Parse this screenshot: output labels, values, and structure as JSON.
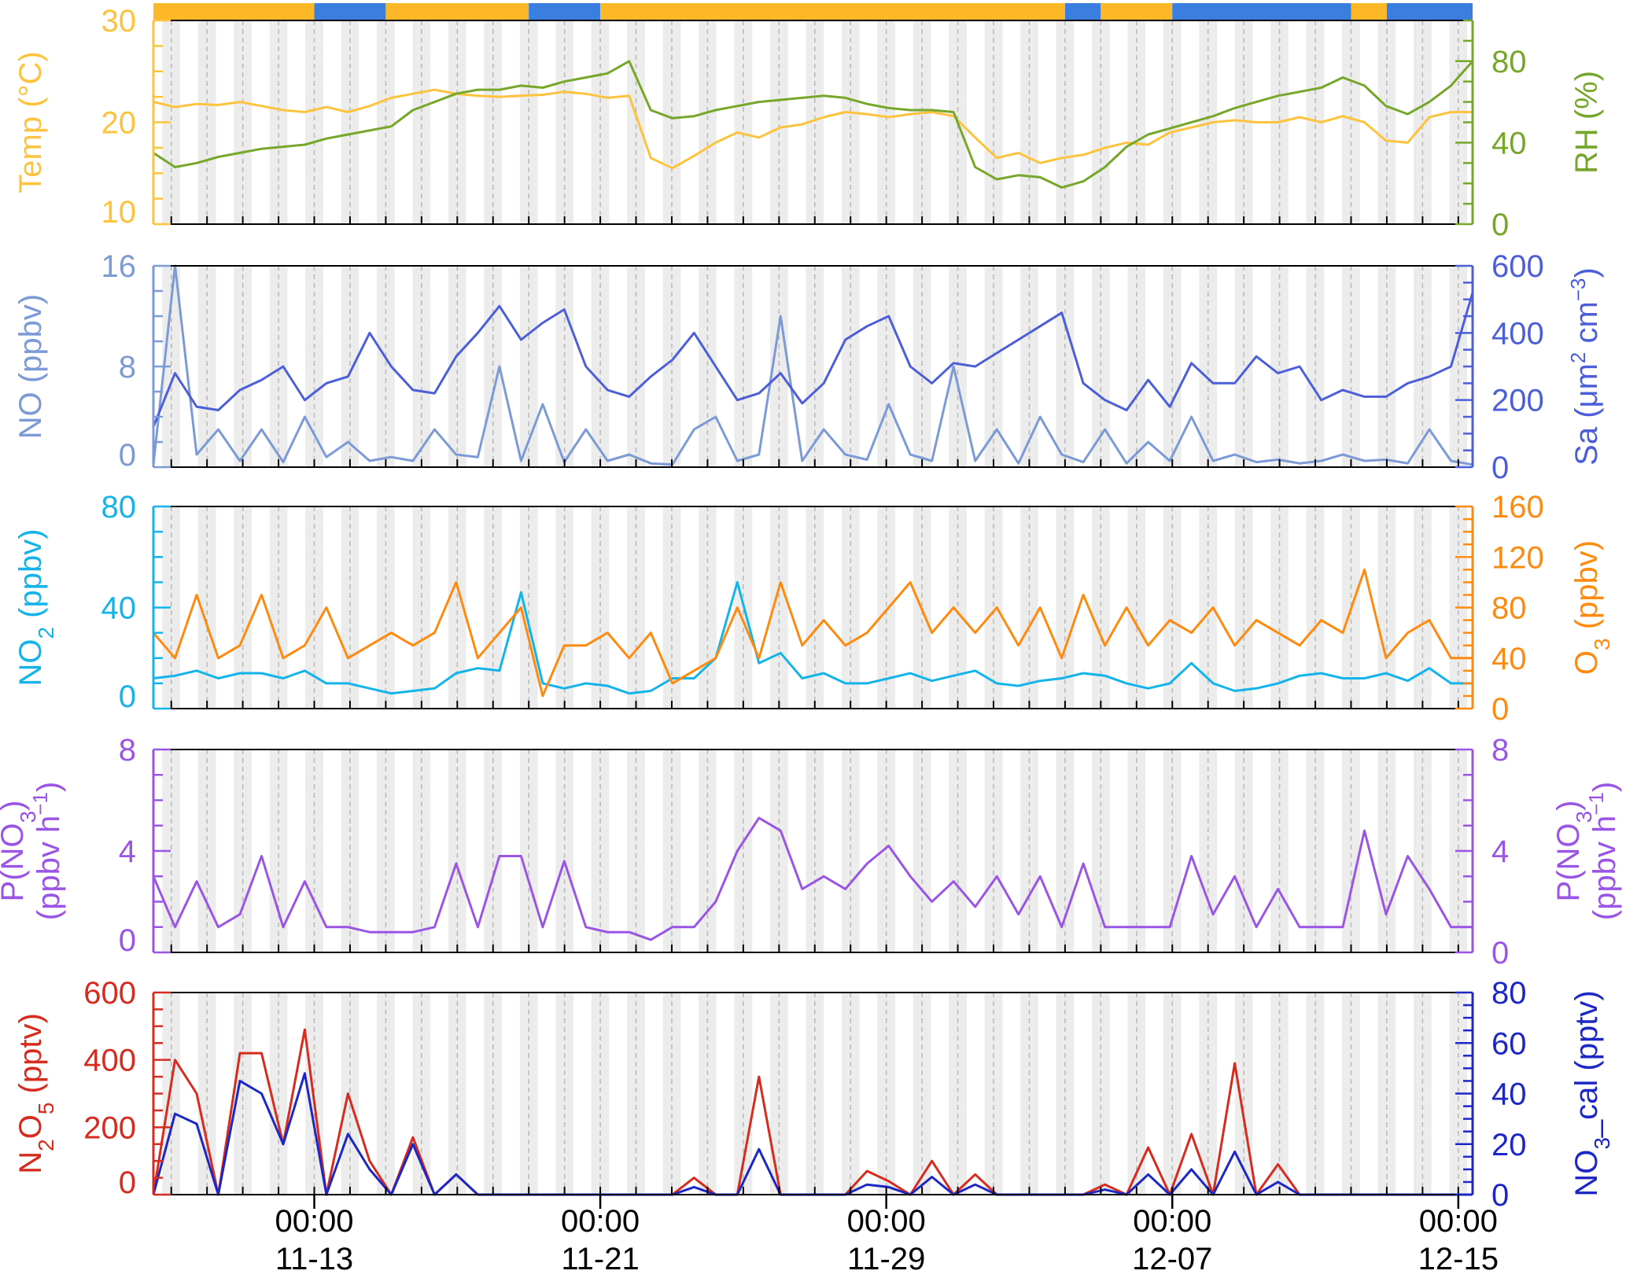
{
  "chart_data": {
    "type": "line",
    "x_ticks": [
      {
        "time": "00:00",
        "date": "11-13",
        "day": 8
      },
      {
        "time": "00:00",
        "date": "11-21",
        "day": 16
      },
      {
        "time": "00:00",
        "date": "11-29",
        "day": 24
      },
      {
        "time": "00:00",
        "date": "12-07",
        "day": 32
      },
      {
        "time": "00:00",
        "date": "12-15",
        "day": 40
      }
    ],
    "x_range_days": [
      3.5,
      40.4
    ],
    "day_offset_note": "",
    "status_bar": {
      "colors": [
        "#fdb827",
        "#3a7fe0"
      ],
      "segments": [
        {
          "start": 3.5,
          "end": 8.0,
          "state": 0
        },
        {
          "start": 8.0,
          "end": 10.0,
          "state": 1
        },
        {
          "start": 10.0,
          "end": 14.0,
          "state": 0
        },
        {
          "start": 14.0,
          "end": 16.0,
          "state": 1
        },
        {
          "start": 16.0,
          "end": 29.0,
          "state": 0
        },
        {
          "start": 29.0,
          "end": 30.0,
          "state": 1
        },
        {
          "start": 30.0,
          "end": 32.0,
          "state": 0
        },
        {
          "start": 32.0,
          "end": 37.0,
          "state": 1
        },
        {
          "start": 37.0,
          "end": 38.0,
          "state": 0
        },
        {
          "start": 38.0,
          "end": 40.4,
          "state": 1
        }
      ]
    },
    "panels": [
      {
        "id": "met",
        "left_axis": {
          "label_html": "Temp (°C)",
          "color": "#fdc33f",
          "ticks": [
            10,
            20,
            30
          ],
          "range": [
            10,
            30
          ]
        },
        "right_axis": {
          "label_html": "RH (%)",
          "color": "#76a72b",
          "ticks": [
            0,
            40,
            80
          ],
          "range": [
            0,
            100
          ]
        },
        "series": [
          {
            "axis": "left",
            "color": "#fdc33f",
            "values": [
              22.0,
              21.5,
              21.8,
              21.7,
              22.0,
              21.6,
              21.2,
              21.0,
              21.5,
              21.0,
              21.6,
              22.4,
              22.8,
              23.2,
              22.8,
              22.6,
              22.5,
              22.6,
              22.7,
              23.0,
              22.8,
              22.4,
              22.6,
              16.5,
              15.5,
              16.7,
              18.0,
              19.0,
              18.5,
              19.5,
              19.8,
              20.5,
              21.0,
              20.8,
              20.5,
              20.8,
              21.0,
              20.6,
              18.5,
              16.5,
              17.0,
              16.0,
              16.5,
              16.8,
              17.5,
              18.0,
              17.8,
              19.0,
              19.5,
              20.0,
              20.2,
              20.0,
              20.0,
              20.5,
              20.0,
              20.6,
              20.0,
              18.2,
              18.0,
              20.5,
              21.0,
              21.0
            ]
          },
          {
            "axis": "right",
            "color": "#76a72b",
            "values": [
              35,
              28,
              30,
              33,
              35,
              37,
              38,
              39,
              42,
              44,
              46,
              48,
              56,
              60,
              64,
              66,
              66,
              68,
              67,
              70,
              72,
              74,
              80,
              56,
              52,
              53,
              56,
              58,
              60,
              61,
              62,
              63,
              62,
              59,
              57,
              56,
              56,
              55,
              28,
              22,
              24,
              23,
              18,
              21,
              28,
              38,
              44,
              47,
              50,
              53,
              57,
              60,
              63,
              65,
              67,
              72,
              68,
              58,
              54,
              60,
              68,
              80
            ]
          }
        ]
      },
      {
        "id": "no-sa",
        "left_axis": {
          "label_html": "NO (ppbv)",
          "color": "#7b9ad6",
          "ticks": [
            0,
            8,
            16
          ],
          "range": [
            0,
            16
          ]
        },
        "right_axis": {
          "label_html": "Sa (μm<tspan baseline-shift=\"super\" font-size=\"26\">2</tspan> cm<tspan baseline-shift=\"super\" font-size=\"26\">−3</tspan>)",
          "color": "#4d5fd8",
          "ticks": [
            0,
            200,
            400,
            600
          ],
          "range": [
            0,
            600
          ]
        },
        "series": [
          {
            "axis": "left",
            "color": "#7b9ad6",
            "values": [
              0.2,
              16.0,
              1.0,
              3.0,
              0.5,
              3.0,
              0.4,
              4.0,
              0.8,
              2.0,
              0.5,
              0.8,
              0.5,
              3.0,
              1.0,
              0.8,
              8.0,
              0.5,
              5.0,
              0.4,
              3.0,
              0.5,
              1.0,
              0.3,
              0.2,
              3.0,
              4.0,
              0.5,
              1.0,
              12.0,
              0.5,
              3.0,
              1.0,
              0.6,
              5.0,
              1.0,
              0.5,
              8.0,
              0.5,
              3.0,
              0.3,
              4.0,
              1.0,
              0.4,
              3.0,
              0.3,
              2.0,
              0.5,
              4.0,
              0.5,
              1.0,
              0.4,
              0.6,
              0.3,
              0.5,
              1.0,
              0.5,
              0.6,
              0.3,
              3.0,
              0.5,
              0.2
            ]
          },
          {
            "axis": "right",
            "color": "#4d5fd8",
            "values": [
              120,
              280,
              180,
              170,
              230,
              260,
              300,
              200,
              250,
              270,
              400,
              300,
              230,
              220,
              330,
              400,
              480,
              380,
              430,
              470,
              300,
              230,
              210,
              270,
              320,
              400,
              300,
              200,
              220,
              280,
              190,
              250,
              380,
              420,
              450,
              300,
              250,
              310,
              300,
              340,
              380,
              420,
              460,
              250,
              200,
              170,
              260,
              180,
              310,
              250,
              250,
              330,
              280,
              300,
              200,
              230,
              210,
              210,
              250,
              270,
              300,
              520
            ]
          }
        ]
      },
      {
        "id": "no2-o3",
        "left_axis": {
          "label_html": "NO<tspan baseline-shift=\"sub\" font-size=\"28\">2</tspan> (ppbv)",
          "color": "#14b4ea",
          "ticks": [
            0,
            40,
            80
          ],
          "range": [
            0,
            80
          ]
        },
        "right_axis": {
          "label_html": "O<tspan baseline-shift=\"sub\" font-size=\"28\">3</tspan> (ppbv)",
          "color": "#ff8a10",
          "ticks": [
            0,
            40,
            80,
            120,
            160
          ],
          "range": [
            0,
            160
          ]
        },
        "series": [
          {
            "axis": "left",
            "color": "#14b4ea",
            "values": [
              12,
              13,
              15,
              12,
              14,
              14,
              12,
              15,
              10,
              10,
              8,
              6,
              7,
              8,
              14,
              16,
              15,
              46,
              10,
              8,
              10,
              9,
              6,
              7,
              12,
              12,
              20,
              50,
              18,
              22,
              12,
              14,
              10,
              10,
              12,
              14,
              11,
              13,
              15,
              10,
              9,
              11,
              12,
              14,
              13,
              10,
              8,
              10,
              18,
              10,
              7,
              8,
              10,
              13,
              14,
              12,
              12,
              14,
              11,
              16,
              10,
              10
            ]
          },
          {
            "axis": "right",
            "color": "#ff8a10",
            "values": [
              60,
              40,
              90,
              40,
              50,
              90,
              40,
              50,
              80,
              40,
              50,
              60,
              50,
              60,
              100,
              40,
              60,
              80,
              10,
              50,
              50,
              60,
              40,
              60,
              20,
              30,
              40,
              80,
              40,
              100,
              50,
              70,
              50,
              60,
              80,
              100,
              60,
              80,
              60,
              80,
              50,
              80,
              40,
              90,
              50,
              80,
              50,
              70,
              60,
              80,
              50,
              70,
              60,
              50,
              70,
              60,
              110,
              40,
              60,
              70,
              40,
              40
            ]
          }
        ]
      },
      {
        "id": "pno3",
        "left_axis": {
          "label_html": "P(NO<tspan baseline-shift=\"sub\" font-size=\"28\">3</tspan>)|(ppbv h<tspan baseline-shift=\"super\" font-size=\"26\">−1</tspan>)",
          "color": "#9a55e4",
          "ticks": [
            0,
            4,
            8
          ],
          "range": [
            0,
            8
          ]
        },
        "right_axis": {
          "label_html": "P(NO<tspan baseline-shift=\"sub\" font-size=\"28\">3</tspan>)|(ppbv h<tspan baseline-shift=\"super\" font-size=\"26\">−1</tspan>)",
          "color": "#9a55e4",
          "ticks": [
            0,
            4,
            8
          ],
          "range": [
            0,
            8
          ]
        },
        "series": [
          {
            "axis": "left",
            "color": "#9a55e4",
            "values": [
              3.0,
              1.0,
              2.8,
              1.0,
              1.5,
              3.8,
              1.0,
              2.8,
              1.0,
              1.0,
              0.8,
              0.8,
              0.8,
              1.0,
              3.5,
              1.0,
              3.8,
              3.8,
              1.0,
              3.6,
              1.0,
              0.8,
              0.8,
              0.5,
              1.0,
              1.0,
              2.0,
              4.0,
              5.3,
              4.8,
              2.5,
              3.0,
              2.5,
              3.5,
              4.2,
              3.0,
              2.0,
              2.8,
              1.8,
              3.0,
              1.5,
              3.0,
              1.0,
              3.5,
              1.0,
              1.0,
              1.0,
              1.0,
              3.8,
              1.5,
              3.0,
              1.0,
              2.5,
              1.0,
              1.0,
              1.0,
              4.8,
              1.5,
              3.8,
              2.5,
              1.0,
              1.0
            ]
          }
        ]
      },
      {
        "id": "n2o5-no3",
        "left_axis": {
          "label_html": "N<tspan baseline-shift=\"sub\" font-size=\"28\">2</tspan>O<tspan baseline-shift=\"sub\" font-size=\"28\">5</tspan> (pptv)",
          "color": "#d62b1e",
          "ticks": [
            0,
            200,
            400,
            600
          ],
          "range": [
            0,
            600
          ]
        },
        "right_axis": {
          "label_html": "NO<tspan baseline-shift=\"sub\" font-size=\"28\">3</tspan>_cal (pptv)",
          "color": "#1c27c4",
          "ticks": [
            0,
            20,
            40,
            60,
            80
          ],
          "range": [
            0,
            80
          ]
        },
        "series": [
          {
            "axis": "left",
            "color": "#d62b1e",
            "values": [
              0,
              400,
              300,
              0,
              420,
              420,
              150,
              490,
              0,
              300,
              100,
              0,
              170,
              0,
              60,
              0,
              0,
              0,
              0,
              0,
              0,
              0,
              0,
              0,
              0,
              50,
              0,
              0,
              350,
              0,
              0,
              0,
              0,
              70,
              40,
              0,
              100,
              0,
              60,
              0,
              0,
              0,
              0,
              0,
              30,
              0,
              140,
              0,
              180,
              0,
              390,
              0,
              90,
              0,
              0,
              0,
              0,
              0,
              0,
              0,
              0,
              0
            ]
          },
          {
            "axis": "right",
            "color": "#1c27c4",
            "values": [
              0,
              32,
              28,
              0,
              45,
              40,
              20,
              48,
              0,
              24,
              10,
              0,
              20,
              0,
              8,
              0,
              0,
              0,
              0,
              0,
              0,
              0,
              0,
              0,
              0,
              3,
              0,
              0,
              18,
              0,
              0,
              0,
              0,
              4,
              3,
              0,
              7,
              0,
              4,
              0,
              0,
              0,
              0,
              0,
              2,
              0,
              8,
              0,
              10,
              0,
              17,
              0,
              5,
              0,
              0,
              0,
              0,
              0,
              0,
              0,
              0,
              0
            ]
          }
        ]
      }
    ]
  }
}
